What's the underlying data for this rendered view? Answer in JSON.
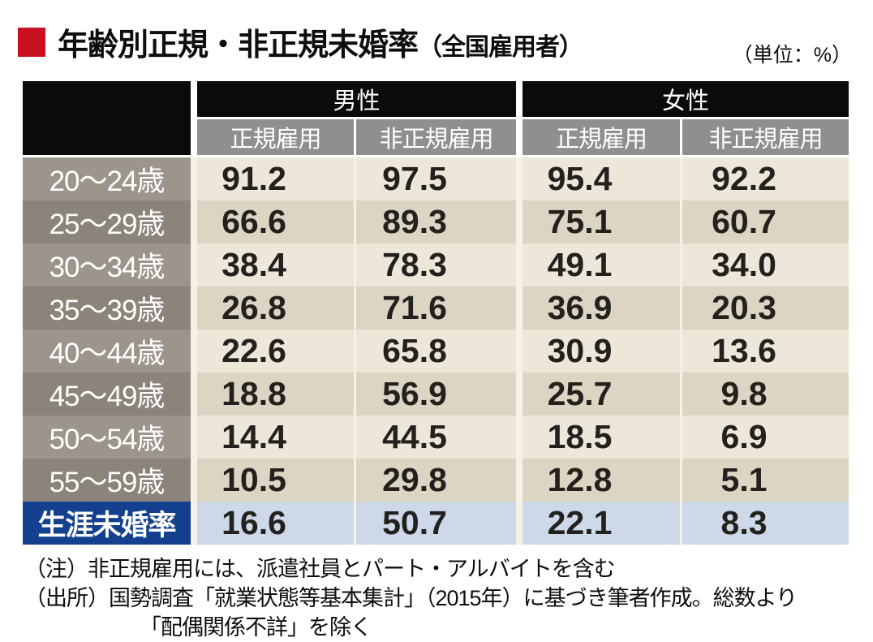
{
  "title": {
    "main": "年齢別正規・非正規未婚率",
    "suffix": "（全国雇用者）"
  },
  "unit_label": "（単位：%）",
  "colors": {
    "accent_red": "#c9121f",
    "group_header_bg": "#0b0b0b",
    "sub_header_bg": "#8f8f8f",
    "row_label_light": "#9b958c",
    "row_label_dark": "#8a847b",
    "cell_light": "#ede7d9",
    "cell_dark": "#dcd5c3",
    "total_label_bg": "#14418f",
    "total_cell_bg": "#cdd8e8"
  },
  "chart_data": {
    "type": "table",
    "title": "年齢別正規・非正規未婚率（全国雇用者）",
    "unit": "%",
    "col_groups": [
      {
        "label": "男性",
        "span": 2
      },
      {
        "label": "女性",
        "span": 2
      }
    ],
    "columns": [
      "正規雇用",
      "非正規雇用",
      "正規雇用",
      "非正規雇用"
    ],
    "rows": [
      {
        "label": "20〜24歳",
        "values": [
          "91.2",
          "97.5",
          "95.4",
          "92.2"
        ],
        "variant": "light"
      },
      {
        "label": "25〜29歳",
        "values": [
          "66.6",
          "89.3",
          "75.1",
          "60.7"
        ],
        "variant": "dark"
      },
      {
        "label": "30〜34歳",
        "values": [
          "38.4",
          "78.3",
          "49.1",
          "34.0"
        ],
        "variant": "light"
      },
      {
        "label": "35〜39歳",
        "values": [
          "26.8",
          "71.6",
          "36.9",
          "20.3"
        ],
        "variant": "dark"
      },
      {
        "label": "40〜44歳",
        "values": [
          "22.6",
          "65.8",
          "30.9",
          "13.6"
        ],
        "variant": "light"
      },
      {
        "label": "45〜49歳",
        "values": [
          "18.8",
          "56.9",
          "25.7",
          "9.8"
        ],
        "variant": "dark"
      },
      {
        "label": "50〜54歳",
        "values": [
          "14.4",
          "44.5",
          "18.5",
          "6.9"
        ],
        "variant": "light"
      },
      {
        "label": "55〜59歳",
        "values": [
          "10.5",
          "29.8",
          "12.8",
          "5.1"
        ],
        "variant": "dark"
      },
      {
        "label": "生涯未婚率",
        "values": [
          "16.6",
          "50.7",
          "22.1",
          "8.3"
        ],
        "variant": "total"
      }
    ]
  },
  "notes": [
    "（注）非正規雇用には、派遣社員とパート・アルバイトを含む",
    "（出所）国勢調査「就業状態等基本集計」（2015年）に基づき筆者作成。総数より",
    "「配偶関係不詳」を除く"
  ]
}
